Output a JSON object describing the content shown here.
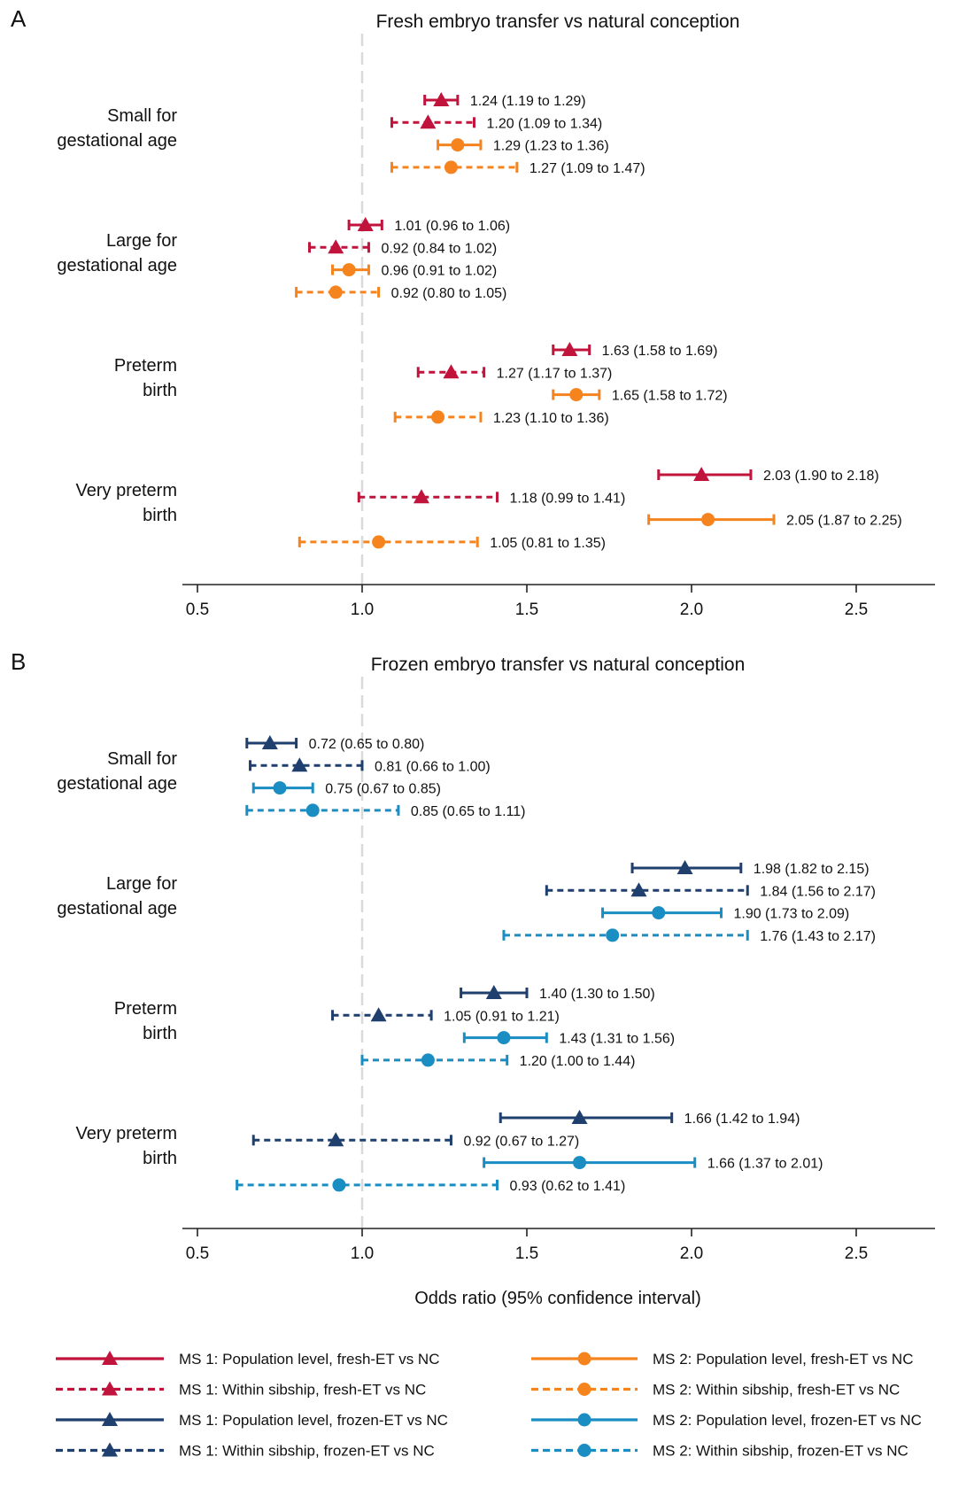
{
  "chart_data": [
    {
      "type": "forest",
      "panel": "A",
      "title": "Fresh embryo transfer vs natural conception",
      "xlim": [
        0.5,
        2.5
      ],
      "xticks": [
        "0.5",
        "1.0",
        "1.5",
        "2.0",
        "2.5"
      ],
      "reference_line": 1.0,
      "xlabel": "",
      "categories": [
        {
          "label": [
            "Small for",
            "gestational age"
          ],
          "rows": [
            {
              "series": "ms1_pop_fresh",
              "or": 1.24,
              "lo": 1.19,
              "hi": 1.29,
              "text": "1.24 (1.19 to 1.29)"
            },
            {
              "series": "ms1_sib_fresh",
              "or": 1.2,
              "lo": 1.09,
              "hi": 1.34,
              "text": "1.20 (1.09 to 1.34)"
            },
            {
              "series": "ms2_pop_fresh",
              "or": 1.29,
              "lo": 1.23,
              "hi": 1.36,
              "text": "1.29 (1.23 to 1.36)"
            },
            {
              "series": "ms2_sib_fresh",
              "or": 1.27,
              "lo": 1.09,
              "hi": 1.47,
              "text": "1.27 (1.09 to 1.47)"
            }
          ]
        },
        {
          "label": [
            "Large for",
            "gestational age"
          ],
          "rows": [
            {
              "series": "ms1_pop_fresh",
              "or": 1.01,
              "lo": 0.96,
              "hi": 1.06,
              "text": "1.01 (0.96 to 1.06)"
            },
            {
              "series": "ms1_sib_fresh",
              "or": 0.92,
              "lo": 0.84,
              "hi": 1.02,
              "text": "0.92 (0.84 to 1.02)"
            },
            {
              "series": "ms2_pop_fresh",
              "or": 0.96,
              "lo": 0.91,
              "hi": 1.02,
              "text": "0.96 (0.91 to 1.02)"
            },
            {
              "series": "ms2_sib_fresh",
              "or": 0.92,
              "lo": 0.8,
              "hi": 1.05,
              "text": "0.92 (0.80 to 1.05)"
            }
          ]
        },
        {
          "label": [
            "Preterm",
            "birth"
          ],
          "rows": [
            {
              "series": "ms1_pop_fresh",
              "or": 1.63,
              "lo": 1.58,
              "hi": 1.69,
              "text": "1.63 (1.58 to 1.69)"
            },
            {
              "series": "ms1_sib_fresh",
              "or": 1.27,
              "lo": 1.17,
              "hi": 1.37,
              "text": "1.27 (1.17 to 1.37)"
            },
            {
              "series": "ms2_pop_fresh",
              "or": 1.65,
              "lo": 1.58,
              "hi": 1.72,
              "text": "1.65 (1.58 to 1.72)"
            },
            {
              "series": "ms2_sib_fresh",
              "or": 1.23,
              "lo": 1.1,
              "hi": 1.36,
              "text": "1.23 (1.10 to 1.36)"
            }
          ]
        },
        {
          "label": [
            "Very preterm",
            "birth"
          ],
          "rows": [
            {
              "series": "ms1_pop_fresh",
              "or": 2.03,
              "lo": 1.9,
              "hi": 2.18,
              "text": "2.03 (1.90 to 2.18)"
            },
            {
              "series": "ms1_sib_fresh",
              "or": 1.18,
              "lo": 0.99,
              "hi": 1.41,
              "text": "1.18 (0.99 to 1.41)"
            },
            {
              "series": "ms2_pop_fresh",
              "or": 2.05,
              "lo": 1.87,
              "hi": 2.25,
              "text": "2.05 (1.87 to 2.25)"
            },
            {
              "series": "ms2_sib_fresh",
              "or": 1.05,
              "lo": 0.81,
              "hi": 1.35,
              "text": "1.05 (0.81 to 1.35)"
            }
          ]
        }
      ]
    },
    {
      "type": "forest",
      "panel": "B",
      "title": "Frozen embryo transfer vs natural conception",
      "xlim": [
        0.5,
        2.5
      ],
      "xticks": [
        "0.5",
        "1.0",
        "1.5",
        "2.0",
        "2.5"
      ],
      "reference_line": 1.0,
      "xlabel": "Odds ratio (95% confidence interval)",
      "categories": [
        {
          "label": [
            "Small for",
            "gestational age"
          ],
          "rows": [
            {
              "series": "ms1_pop_frozen",
              "or": 0.72,
              "lo": 0.65,
              "hi": 0.8,
              "text": "0.72 (0.65 to 0.80)"
            },
            {
              "series": "ms1_sib_frozen",
              "or": 0.81,
              "lo": 0.66,
              "hi": 1.0,
              "text": "0.81 (0.66 to 1.00)"
            },
            {
              "series": "ms2_pop_frozen",
              "or": 0.75,
              "lo": 0.67,
              "hi": 0.85,
              "text": "0.75 (0.67 to 0.85)"
            },
            {
              "series": "ms2_sib_frozen",
              "or": 0.85,
              "lo": 0.65,
              "hi": 1.11,
              "text": "0.85 (0.65 to 1.11)"
            }
          ]
        },
        {
          "label": [
            "Large for",
            "gestational age"
          ],
          "rows": [
            {
              "series": "ms1_pop_frozen",
              "or": 1.98,
              "lo": 1.82,
              "hi": 2.15,
              "text": "1.98 (1.82 to 2.15)"
            },
            {
              "series": "ms1_sib_frozen",
              "or": 1.84,
              "lo": 1.56,
              "hi": 2.17,
              "text": "1.84 (1.56 to 2.17)"
            },
            {
              "series": "ms2_pop_frozen",
              "or": 1.9,
              "lo": 1.73,
              "hi": 2.09,
              "text": "1.90 (1.73 to 2.09)"
            },
            {
              "series": "ms2_sib_frozen",
              "or": 1.76,
              "lo": 1.43,
              "hi": 2.17,
              "text": "1.76 (1.43 to 2.17)"
            }
          ]
        },
        {
          "label": [
            "Preterm",
            "birth"
          ],
          "rows": [
            {
              "series": "ms1_pop_frozen",
              "or": 1.4,
              "lo": 1.3,
              "hi": 1.5,
              "text": "1.40 (1.30 to 1.50)"
            },
            {
              "series": "ms1_sib_frozen",
              "or": 1.05,
              "lo": 0.91,
              "hi": 1.21,
              "text": "1.05 (0.91 to 1.21)"
            },
            {
              "series": "ms2_pop_frozen",
              "or": 1.43,
              "lo": 1.31,
              "hi": 1.56,
              "text": "1.43 (1.31 to 1.56)"
            },
            {
              "series": "ms2_sib_frozen",
              "or": 1.2,
              "lo": 1.0,
              "hi": 1.44,
              "text": "1.20 (1.00 to 1.44)"
            }
          ]
        },
        {
          "label": [
            "Very preterm",
            "birth"
          ],
          "rows": [
            {
              "series": "ms1_pop_frozen",
              "or": 1.66,
              "lo": 1.42,
              "hi": 1.94,
              "text": "1.66 (1.42 to 1.94)"
            },
            {
              "series": "ms1_sib_frozen",
              "or": 0.92,
              "lo": 0.67,
              "hi": 1.27,
              "text": "0.92 (0.67 to 1.27)"
            },
            {
              "series": "ms2_pop_frozen",
              "or": 1.66,
              "lo": 1.37,
              "hi": 2.01,
              "text": "1.66 (1.37 to 2.01)"
            },
            {
              "series": "ms2_sib_frozen",
              "or": 0.93,
              "lo": 0.62,
              "hi": 1.41,
              "text": "0.93 (0.62 to 1.41)"
            }
          ]
        }
      ]
    }
  ],
  "series_styles": {
    "ms1_pop_fresh": {
      "color": "#c0143c",
      "marker": "triangle",
      "dashed": false
    },
    "ms1_sib_fresh": {
      "color": "#c0143c",
      "marker": "triangle",
      "dashed": true
    },
    "ms2_pop_fresh": {
      "color": "#f5841f",
      "marker": "circle",
      "dashed": false
    },
    "ms2_sib_fresh": {
      "color": "#f5841f",
      "marker": "circle",
      "dashed": true
    },
    "ms1_pop_frozen": {
      "color": "#1f3f6e",
      "marker": "triangle",
      "dashed": false
    },
    "ms1_sib_frozen": {
      "color": "#1f3f6e",
      "marker": "triangle",
      "dashed": true
    },
    "ms2_pop_frozen": {
      "color": "#1a8dc2",
      "marker": "circle",
      "dashed": false
    },
    "ms2_sib_frozen": {
      "color": "#1a8dc2",
      "marker": "circle",
      "dashed": true
    }
  },
  "legend": {
    "placement": "bottom",
    "columns": 2,
    "entries": [
      {
        "series": "ms1_pop_fresh",
        "label": "MS 1: Population level, fresh-ET vs NC"
      },
      {
        "series": "ms2_pop_fresh",
        "label": "MS 2: Population level, fresh-ET vs NC"
      },
      {
        "series": "ms1_sib_fresh",
        "label": "MS 1: Within sibship, fresh-ET vs NC"
      },
      {
        "series": "ms2_sib_fresh",
        "label": "MS 2: Within sibship, fresh-ET vs NC"
      },
      {
        "series": "ms1_pop_frozen",
        "label": "MS 1: Population level, frozen-ET vs NC"
      },
      {
        "series": "ms2_pop_frozen",
        "label": "MS 2: Population level, frozen-ET vs NC"
      },
      {
        "series": "ms1_sib_frozen",
        "label": "MS 1: Within sibship, frozen-ET vs NC"
      },
      {
        "series": "ms2_sib_frozen",
        "label": "MS 2: Within sibship, frozen-ET vs NC"
      }
    ]
  },
  "reference_line_color": "#d9d9d9",
  "axis_color": "#222222"
}
